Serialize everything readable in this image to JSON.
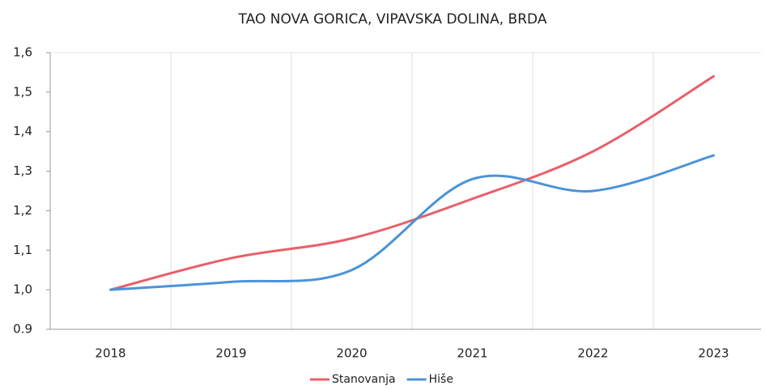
{
  "chart_data": {
    "type": "line",
    "title": "TAO   NOVA GORICA, VIPAVSKA DOLINA, BRDA",
    "categories": [
      "2018",
      "2019",
      "2020",
      "2021",
      "2022",
      "2023"
    ],
    "series": [
      {
        "name": "Stanovanja",
        "color": "#e8606a",
        "values": [
          1.0,
          1.08,
          1.13,
          1.23,
          1.35,
          1.54
        ]
      },
      {
        "name": "Hiše",
        "color": "#4b93d8",
        "values": [
          1.0,
          1.02,
          1.05,
          1.28,
          1.25,
          1.34
        ]
      }
    ],
    "ylim": [
      0.9,
      1.6
    ],
    "yticks": [
      0.9,
      {
        "value": 1.0,
        "label": "1,0"
      },
      {
        "value": 1.1,
        "label": "1,1"
      },
      {
        "value": 1.2,
        "label": "1,2"
      },
      {
        "value": 1.3,
        "label": "1,3"
      },
      {
        "value": 1.4,
        "label": "1,4"
      },
      {
        "value": 1.5,
        "label": "1,5"
      },
      {
        "value": 1.6,
        "label": "1,6"
      }
    ],
    "grid": true,
    "smooth": true,
    "legend": "bottom"
  }
}
